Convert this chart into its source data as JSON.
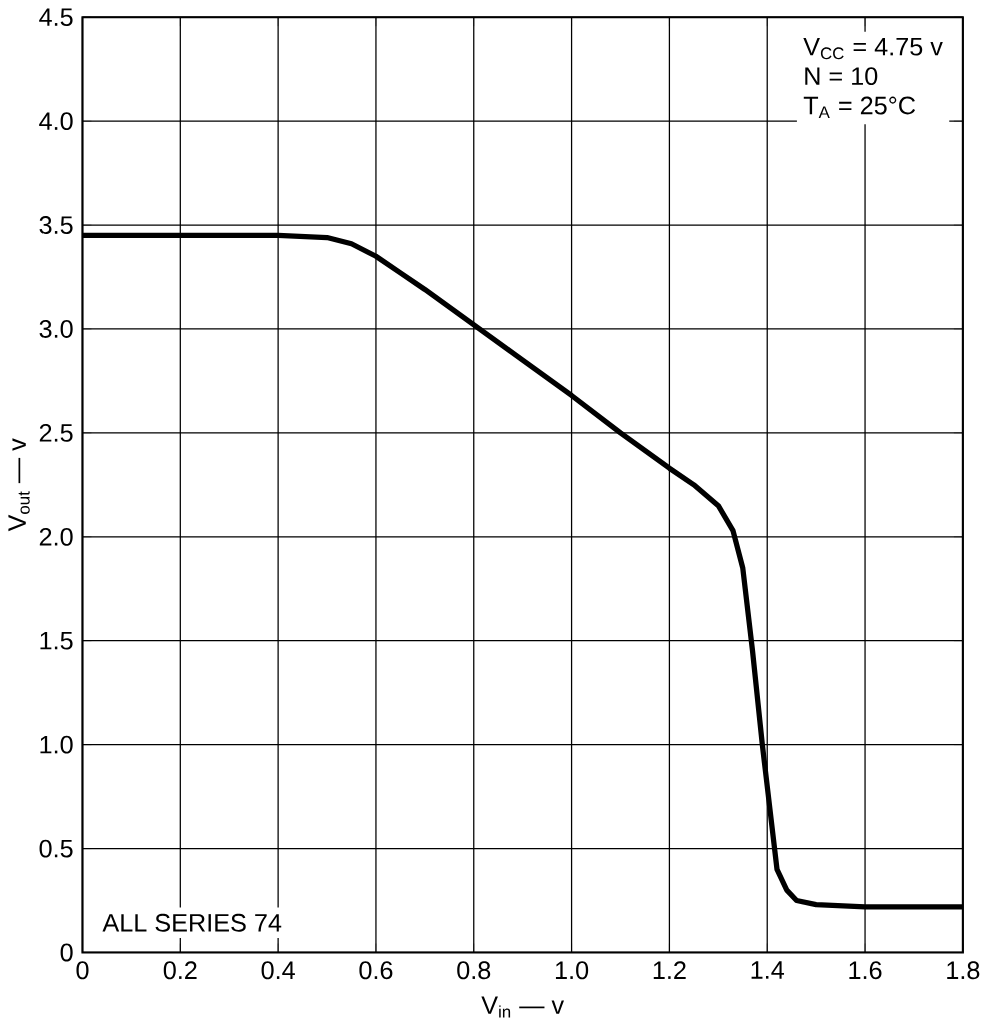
{
  "chart_data": {
    "type": "line",
    "xlabel": "V$_{in}$ — v",
    "ylabel": "V$_{out}$ — v",
    "x": [
      0,
      0.1,
      0.2,
      0.3,
      0.4,
      0.5,
      0.55,
      0.6,
      0.65,
      0.7,
      0.8,
      0.9,
      1.0,
      1.1,
      1.2,
      1.25,
      1.3,
      1.33,
      1.35,
      1.37,
      1.39,
      1.41,
      1.42,
      1.44,
      1.46,
      1.5,
      1.6,
      1.7,
      1.8
    ],
    "values": [
      3.45,
      3.45,
      3.45,
      3.45,
      3.45,
      3.44,
      3.41,
      3.35,
      3.27,
      3.19,
      3.02,
      2.85,
      2.68,
      2.5,
      2.33,
      2.25,
      2.15,
      2.03,
      1.85,
      1.45,
      1.0,
      0.6,
      0.4,
      0.3,
      0.25,
      0.23,
      0.22,
      0.22,
      0.22
    ],
    "color": "#000000",
    "xlim": [
      0,
      1.8
    ],
    "ylim": [
      0,
      4.5
    ],
    "xticks": [
      0,
      0.2,
      0.4,
      0.6,
      0.8,
      {
        "value": 1.0,
        "label": "1.0"
      },
      1.2,
      1.4,
      1.6,
      1.8
    ],
    "yticks": [
      0,
      0.5,
      {
        "value": 1.0,
        "label": "1.0"
      },
      1.5,
      {
        "value": 2.0,
        "label": "2.0"
      },
      2.5,
      {
        "value": 3.0,
        "label": "3.0"
      },
      3.5,
      {
        "value": 4.0,
        "label": "4.0"
      },
      4.5
    ],
    "grid": true,
    "marker": "none",
    "line_style": "solid",
    "annotations": [
      "V$_{CC}$ = 4.75 v",
      "N = 10",
      "T$_{A}$ = 25°C",
      "ALL SERIES 74"
    ]
  }
}
